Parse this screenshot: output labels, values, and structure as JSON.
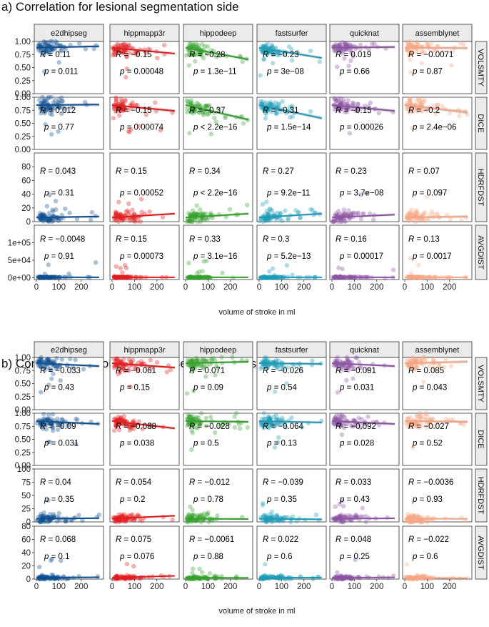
{
  "chart_data": [
    {
      "type": "scatter",
      "title": "a) Correlation for lesional segmentation side",
      "xlabel": "volume of stroke in ml",
      "x_ticks": [
        "0",
        "100",
        "200"
      ],
      "xlim": [
        0,
        290
      ],
      "columns": [
        "e2dhipseg",
        "hippmapp3r",
        "hippodeep",
        "fastsurfer",
        "quicknat",
        "assemblynet"
      ],
      "colors": [
        "#0b4d8f",
        "#e31a1c",
        "#33a02c",
        "#1a9bb8",
        "#8c53a3",
        "#f6a585"
      ],
      "rows": [
        {
          "metric": "VOLSMTY",
          "ylim": [
            0,
            1.0
          ],
          "y_ticks": [
            "0.00",
            "0.25",
            "0.50",
            "0.75",
            "1.00"
          ],
          "y_tick_values": [
            0,
            0.25,
            0.5,
            0.75,
            1.0
          ],
          "y_center": 0.88,
          "y_spread": 0.06,
          "fit_slope": [
            0.0001,
            -0.0004,
            -0.0008,
            -0.0007,
            5e-05,
            -2e-05
          ],
          "r": [
            "0.11",
            "−0.15",
            "−0.28",
            "−0.23",
            "0.019",
            "−0.0071"
          ],
          "p": [
            "0.011",
            "0.00048",
            "1.3e−11",
            "3e−08",
            "0.66",
            "0.87"
          ]
        },
        {
          "metric": "DICE",
          "ylim": [
            0,
            1.0
          ],
          "y_ticks": [
            "0.00",
            "0.25",
            "0.50",
            "0.75",
            "1.00"
          ],
          "y_tick_values": [
            0,
            0.25,
            0.5,
            0.75,
            1.0
          ],
          "y_center": 0.85,
          "y_spread": 0.07,
          "fit_slope": [
            3e-05,
            -0.0004,
            -0.001,
            -0.0009,
            -0.0004,
            -0.0005
          ],
          "r": [
            "0.012",
            "−0.15",
            "−0.37",
            "−0.31",
            "−0.15",
            "−0.2"
          ],
          "p": [
            "0.77",
            "0.00074",
            "< 2.2e−16",
            "1.5e−14",
            "0.00026",
            "2.4e−06"
          ]
        },
        {
          "metric": "HDRFDST",
          "ylim": [
            0,
            100
          ],
          "y_ticks": [
            "0",
            "20",
            "40",
            "60",
            "80"
          ],
          "y_tick_values": [
            0,
            20,
            40,
            60,
            80
          ],
          "y_center": 6,
          "y_spread": 4,
          "fit_slope": [
            0.005,
            0.02,
            0.02,
            0.02,
            0.015,
            0.005
          ],
          "r": [
            "0.043",
            "0.15",
            "0.34",
            "0.27",
            "0.23",
            "0.07"
          ],
          "p": [
            "0.31",
            "0.00052",
            "< 2.2e−16",
            "9.2e−11",
            "3.7e−08",
            "0.097"
          ]
        },
        {
          "metric": "AVGDIST",
          "ylim": [
            -5000,
            150000
          ],
          "y_ticks": [
            "0e+00",
            "5e+04",
            "1e+05"
          ],
          "y_tick_values": [
            0,
            50000,
            100000
          ],
          "y_center": 1500,
          "y_spread": 1000,
          "fit_slope": [
            0,
            0,
            0,
            0,
            0,
            0
          ],
          "r": [
            "−0.0048",
            "0.15",
            "0.33",
            "0.3",
            "0.16",
            "0.13"
          ],
          "p": [
            "0.91",
            "0.00073",
            "3.1e−16",
            "5.2e−13",
            "0.00017",
            "0.0017"
          ]
        }
      ]
    },
    {
      "type": "scatter",
      "title": "b) Correlation for contralesional segmentation side",
      "xlabel": "volume of stroke in ml",
      "x_ticks": [
        "0",
        "100",
        "200"
      ],
      "xlim": [
        0,
        290
      ],
      "columns": [
        "e2dhipseg",
        "hippmapp3r",
        "hippodeep",
        "fastsurfer",
        "quicknat",
        "assemblynet"
      ],
      "colors": [
        "#0b4d8f",
        "#e31a1c",
        "#33a02c",
        "#1a9bb8",
        "#8c53a3",
        "#f6a585"
      ],
      "rows": [
        {
          "metric": "VOLSMTY",
          "ylim": [
            0,
            1.0
          ],
          "y_ticks": [
            "0.00",
            "0.25",
            "0.50",
            "0.75",
            "1.00"
          ],
          "y_tick_values": [
            0,
            0.25,
            0.5,
            0.75,
            1.0
          ],
          "y_center": 0.89,
          "y_spread": 0.06,
          "fit_slope": [
            -0.0002,
            -0.0003,
            0.0001,
            -5e-05,
            -0.0002,
            0.0001
          ],
          "r": [
            "−0.033",
            "−0.061",
            "0.071",
            "−0.026",
            "−0.091",
            "0.085"
          ],
          "p": [
            "0.43",
            "0.15",
            "0.09",
            "0.54",
            "0.031",
            "0.043"
          ]
        },
        {
          "metric": "DICE",
          "ylim": [
            0,
            1.0
          ],
          "y_ticks": [
            "0.00",
            "0.25",
            "0.50",
            "0.75",
            "1.00"
          ],
          "y_tick_values": [
            0,
            0.25,
            0.5,
            0.75,
            1.0
          ],
          "y_center": 0.85,
          "y_spread": 0.06,
          "fit_slope": [
            -0.0002,
            -0.0005,
            -5e-05,
            -0.0001,
            -0.0002,
            -5e-05
          ],
          "r": [
            "−0.09",
            "−0.088",
            "−0.028",
            "−0.064",
            "−0.092",
            "−0.027"
          ],
          "p": [
            "0.031",
            "0.038",
            "0.5",
            "0.13",
            "0.028",
            "0.52"
          ]
        },
        {
          "metric": "HDRFDST",
          "ylim": [
            0,
            100
          ],
          "y_ticks": [
            "0",
            "25",
            "50",
            "75",
            "100"
          ],
          "y_tick_values": [
            0,
            25,
            50,
            75,
            100
          ],
          "y_center": 6,
          "y_spread": 4,
          "fit_slope": [
            0.004,
            0.02,
            -0.002,
            -0.004,
            0.003,
            -0.0003
          ],
          "r": [
            "0.04",
            "0.054",
            "−0.012",
            "−0.039",
            "0.033",
            "−0.0036"
          ],
          "p": [
            "0.35",
            "0.2",
            "0.78",
            "0.35",
            "0.43",
            "0.93"
          ]
        },
        {
          "metric": "AVGDIST",
          "ylim": [
            0,
            80
          ],
          "y_ticks": [
            "0",
            "20",
            "40",
            "60",
            "80"
          ],
          "y_tick_values": [
            0,
            20,
            40,
            60,
            80
          ],
          "y_center": 2,
          "y_spread": 1.5,
          "fit_slope": [
            0.003,
            0.01,
            -0.0003,
            0.001,
            0.002,
            -0.001
          ],
          "r": [
            "0.068",
            "0.075",
            "−0.0061",
            "0.022",
            "0.048",
            "−0.022"
          ],
          "p": [
            "0.1",
            "0.076",
            "0.88",
            "0.6",
            "0.25",
            "0.6"
          ]
        }
      ]
    }
  ]
}
